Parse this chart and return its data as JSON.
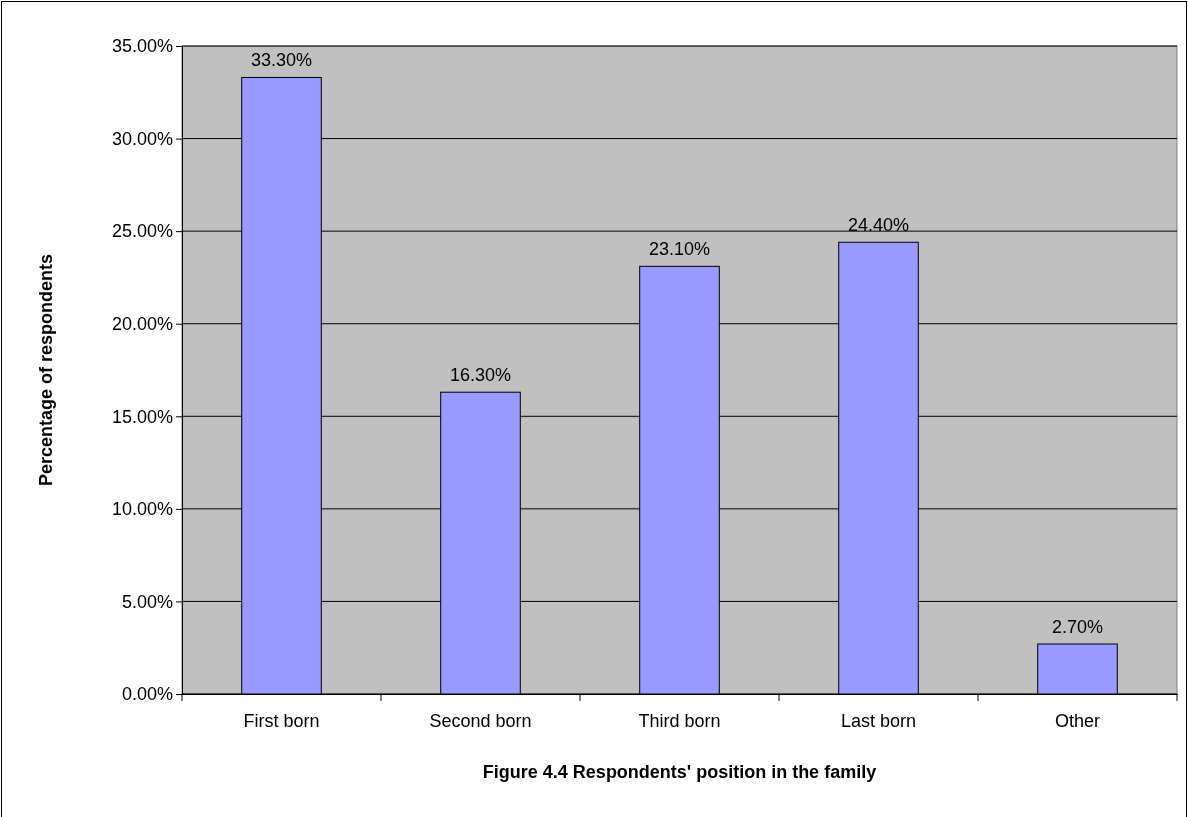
{
  "chart_data": {
    "type": "bar",
    "xlabel": "Figure 4.4 Respondents' position in the family",
    "ylabel": "Percentage of respondents",
    "categories": [
      "First born",
      "Second born",
      "Third born",
      "Last born",
      "Other"
    ],
    "values": [
      33.3,
      16.3,
      23.1,
      24.4,
      2.7
    ],
    "value_labels": [
      "33.30%",
      "16.30%",
      "23.10%",
      "24.40%",
      "2.70%"
    ],
    "color": "#9999ff",
    "ylim": [
      0,
      35
    ],
    "yticks": [
      {
        "value": 0,
        "label": "0.00%"
      },
      {
        "value": 5,
        "label": "5.00%"
      },
      {
        "value": 10,
        "label": "10.00%"
      },
      {
        "value": 15,
        "label": "15.00%"
      },
      {
        "value": 20,
        "label": "20.00%"
      },
      {
        "value": 25,
        "label": "25.00%"
      },
      {
        "value": 30,
        "label": "30.00%"
      },
      {
        "value": 35,
        "label": "35.00%"
      }
    ],
    "grid": "y"
  }
}
